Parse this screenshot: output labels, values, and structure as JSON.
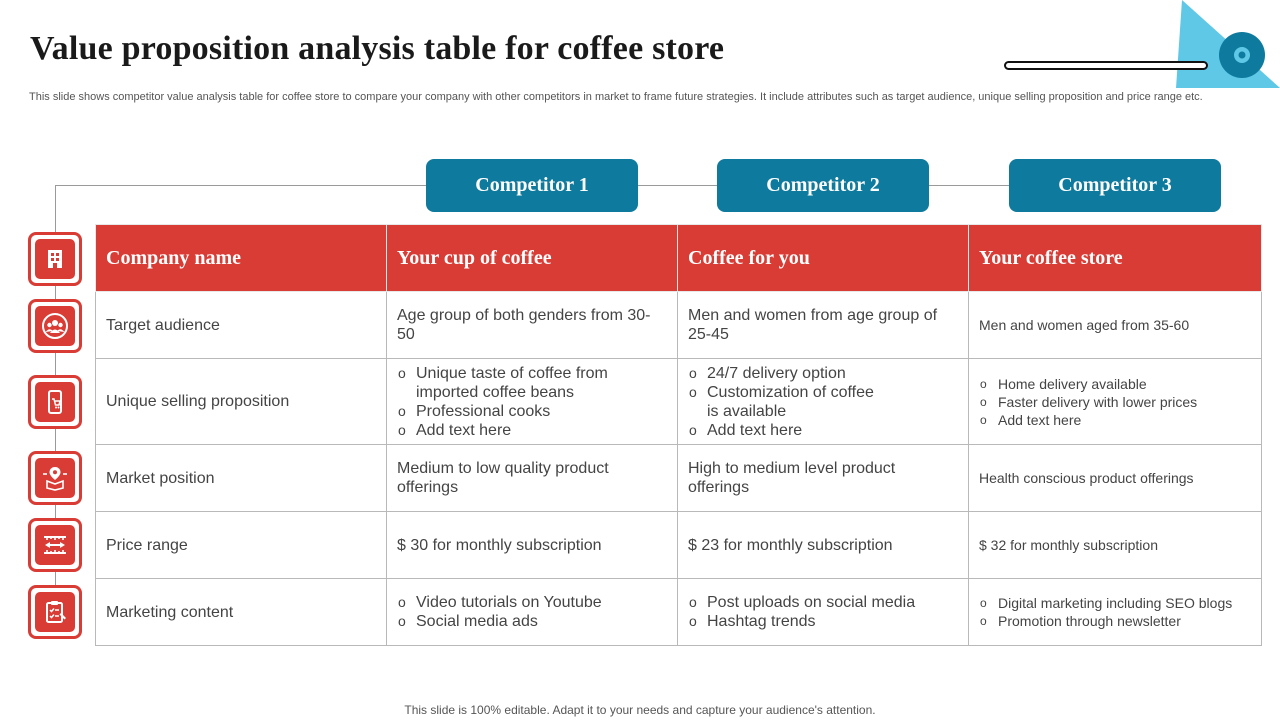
{
  "header": {
    "title": "Value proposition  analysis table for coffee store",
    "subtitle": "This slide shows competitor value analysis table for coffee store to compare your company with other competitors in market to frame future strategies. It include attributes such as target audience, unique selling proposition and price range etc."
  },
  "competitors": [
    "Competitor  1",
    "Competitor  2",
    "Competitor  3"
  ],
  "table": {
    "header": {
      "label": "Company name",
      "values": [
        "Your cup of coffee",
        "Coffee for you",
        "Your coffee store"
      ]
    },
    "target_audience": {
      "label": "Target audience",
      "values": [
        "Age group of both genders from 30-50",
        "Men and women from age group of 25-45",
        "Men and women aged from 35-60"
      ]
    },
    "usp": {
      "label": "Unique selling proposition",
      "c1": [
        "Unique taste of coffee from imported coffee beans",
        "Professional cooks",
        "Add text here"
      ],
      "c2": [
        "24/7 delivery option",
        "Customization of coffee is available",
        "Add text here"
      ],
      "c3": [
        "Home delivery available",
        "Faster delivery with lower prices",
        "Add text here"
      ]
    },
    "market_position": {
      "label": "Market position",
      "values": [
        "Medium to low quality product offerings",
        "High to medium level product offerings",
        "Health conscious product offerings"
      ]
    },
    "price_range": {
      "label": "Price range",
      "values": [
        "$ 30 for monthly  subscription",
        "$ 23 for monthly  subscription",
        "$ 32 for monthly subscription"
      ]
    },
    "marketing_content": {
      "label": "Marketing content",
      "c1": [
        "Video tutorials on Youtube",
        "Social media ads"
      ],
      "c2": [
        "Post uploads on social media",
        "Hashtag trends"
      ],
      "c3": [
        "Digital marketing including SEO blogs",
        "Promotion through newsletter"
      ]
    }
  },
  "icons": [
    "building-icon",
    "people-group-icon",
    "mobile-shopping-icon",
    "map-pin-box-icon",
    "price-ruler-icon",
    "clipboard-checklist-icon"
  ],
  "footer": "This slide is 100% editable. Adapt it to your needs and capture your audience's attention.",
  "colors": {
    "accent_red": "#d93b35",
    "accent_teal": "#0e7a9e",
    "deco_cyan": "#5fc8e6"
  }
}
